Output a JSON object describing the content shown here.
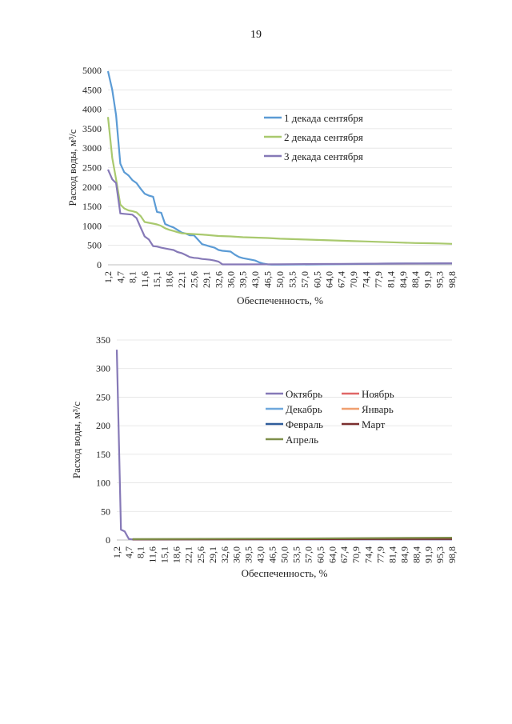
{
  "page": {
    "number": "19"
  },
  "chart_data": [
    {
      "type": "line",
      "xlabel": "Обеспеченность, %",
      "ylabel": "Расход воды, м³/с",
      "ylim": [
        0,
        5000
      ],
      "yticks": [
        0,
        500,
        1000,
        1500,
        2000,
        2500,
        3000,
        3500,
        4000,
        4500,
        5000
      ],
      "xticks": [
        "1,2",
        "4,7",
        "8,1",
        "11,6",
        "15,1",
        "18,6",
        "22,1",
        "25,6",
        "29,1",
        "32,6",
        "36,0",
        "39,5",
        "43,0",
        "46,5",
        "50,0",
        "53,5",
        "57,0",
        "60,5",
        "64,0",
        "67,4",
        "70,9",
        "74,4",
        "77,9",
        "81,4",
        "84,9",
        "88,4",
        "91,9",
        "95,3",
        "98,8"
      ],
      "xlim": [
        1.2,
        98.8
      ],
      "grid": true,
      "legend": "right",
      "series": [
        {
          "name": "1 декада сентября",
          "color": "#5B9BD5",
          "x": [
            1.2,
            2.4,
            3.5,
            4.7,
            5.8,
            7.0,
            8.1,
            9.3,
            10.5,
            11.6,
            12.8,
            14.0,
            15.1,
            16.3,
            17.4,
            18.6,
            19.8,
            20.9,
            22.1,
            23.3,
            24.4,
            25.6,
            26.7,
            27.9,
            29.1,
            30.2,
            31.4,
            32.6,
            33.7,
            34.9,
            36.0,
            37.2,
            38.4,
            39.5,
            40.7,
            41.9,
            43.0,
            44.2,
            45.3,
            46.5,
            47.7,
            48.8,
            50.0,
            60.0,
            70.0,
            80.0,
            90.0,
            98.8
          ],
          "y": [
            4980,
            4500,
            3850,
            2600,
            2380,
            2300,
            2180,
            2100,
            1950,
            1830,
            1780,
            1750,
            1360,
            1340,
            1050,
            1000,
            960,
            900,
            830,
            800,
            760,
            760,
            650,
            530,
            500,
            470,
            440,
            380,
            360,
            350,
            340,
            260,
            200,
            170,
            150,
            130,
            110,
            60,
            30,
            10,
            5,
            5,
            5,
            10,
            20,
            30,
            35,
            40
          ]
        },
        {
          "name": "2 декада сентября",
          "color": "#A9C96E",
          "x": [
            1.2,
            2.4,
            3.5,
            4.7,
            5.8,
            7.0,
            8.1,
            9.3,
            10.5,
            11.6,
            12.8,
            14.0,
            15.1,
            16.3,
            17.4,
            18.6,
            19.8,
            20.9,
            22.1,
            25.6,
            29.1,
            32.6,
            36.0,
            39.5,
            43.0,
            46.5,
            50.0,
            53.5,
            57.0,
            60.5,
            64.0,
            67.4,
            70.9,
            74.4,
            77.9,
            81.4,
            84.9,
            88.4,
            91.9,
            95.3,
            98.8
          ],
          "y": [
            3800,
            2750,
            2200,
            1550,
            1450,
            1400,
            1380,
            1350,
            1250,
            1100,
            1080,
            1060,
            1040,
            1000,
            940,
            900,
            870,
            840,
            810,
            790,
            770,
            740,
            730,
            710,
            700,
            690,
            670,
            660,
            650,
            640,
            630,
            620,
            610,
            600,
            590,
            580,
            570,
            560,
            555,
            550,
            540
          ]
        },
        {
          "name": "3 декада сентября",
          "color": "#8679B7",
          "x": [
            1.2,
            2.4,
            3.5,
            4.7,
            5.8,
            7.0,
            8.1,
            9.3,
            10.5,
            11.6,
            12.8,
            14.0,
            15.1,
            16.3,
            17.4,
            18.6,
            19.8,
            20.9,
            22.1,
            23.3,
            24.4,
            25.6,
            26.7,
            27.9,
            29.1,
            30.2,
            31.4,
            32.6,
            33.7,
            40.0,
            50.0,
            60.0,
            70.0,
            80.0,
            90.0,
            98.8
          ],
          "y": [
            2450,
            2200,
            2100,
            1320,
            1310,
            1300,
            1290,
            1200,
            950,
            730,
            650,
            480,
            470,
            440,
            420,
            400,
            380,
            330,
            300,
            250,
            200,
            180,
            170,
            150,
            140,
            130,
            110,
            80,
            10,
            10,
            15,
            20,
            25,
            30,
            35,
            40
          ]
        }
      ]
    },
    {
      "type": "line",
      "xlabel": "Обеспеченность, %",
      "ylabel": "Расход воды, м³/с",
      "ylim": [
        0,
        350
      ],
      "yticks": [
        0,
        50,
        100,
        150,
        200,
        250,
        300,
        350
      ],
      "xticks": [
        "1,2",
        "4,7",
        "8,1",
        "11,6",
        "15,1",
        "18,6",
        "22,1",
        "25,6",
        "29,1",
        "32,6",
        "36,0",
        "39,5",
        "43,0",
        "46,5",
        "50,0",
        "53,5",
        "57,0",
        "60,5",
        "64,0",
        "67,4",
        "70,9",
        "74,4",
        "77,9",
        "81,4",
        "84,9",
        "88,4",
        "91,9",
        "95,3",
        "98,8"
      ],
      "xlim": [
        1.2,
        98.8
      ],
      "grid": true,
      "legend": "right",
      "series": [
        {
          "name": "Октябрь",
          "color": "#8679B7",
          "x": [
            1.2,
            2.4,
            3.5,
            4.7,
            5.8,
            98.8
          ],
          "y": [
            333,
            18,
            15,
            2,
            1,
            1
          ]
        },
        {
          "name": "Ноябрь",
          "color": "#E06666",
          "x": [
            5.8,
            98.8
          ],
          "y": [
            1,
            2
          ]
        },
        {
          "name": "Декабрь",
          "color": "#6FA8DC",
          "x": [
            5.8,
            98.8
          ],
          "y": [
            1,
            2
          ]
        },
        {
          "name": "Январь",
          "color": "#F0A070",
          "x": [
            5.8,
            98.8
          ],
          "y": [
            1,
            2
          ]
        },
        {
          "name": "Февраль",
          "color": "#2E5C9A",
          "x": [
            5.8,
            98.8
          ],
          "y": [
            1,
            2
          ]
        },
        {
          "name": "Март",
          "color": "#7A2E2E",
          "x": [
            5.8,
            98.8
          ],
          "y": [
            1,
            2
          ]
        },
        {
          "name": "Апрель",
          "color": "#7E8F4A",
          "x": [
            5.8,
            50.0,
            98.8
          ],
          "y": [
            1.5,
            2.5,
            4
          ]
        }
      ]
    }
  ]
}
